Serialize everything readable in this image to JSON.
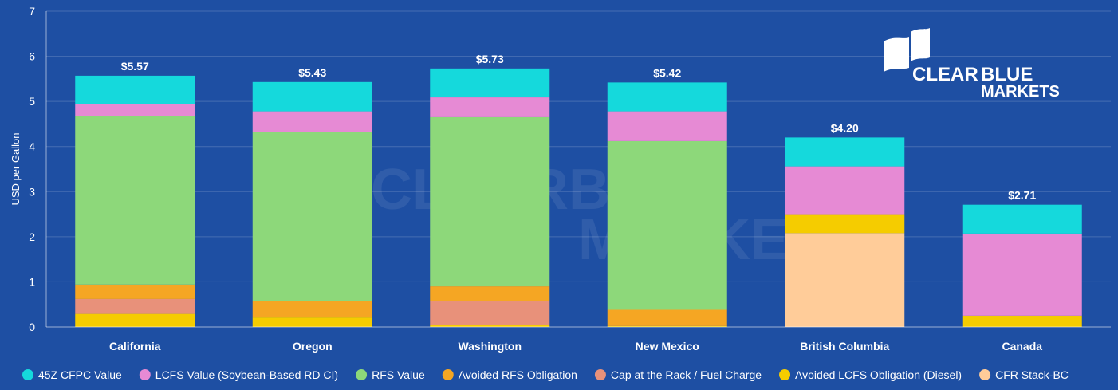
{
  "logo": {
    "line1_word1": "CLEAR",
    "line1_word2": "BLUE",
    "line2": "MARKETS"
  },
  "chart_data": {
    "type": "bar",
    "stacked": true,
    "ylabel": "USD per Gallon",
    "ylim": [
      0,
      7
    ],
    "yticks": [
      0,
      1,
      2,
      3,
      4,
      5,
      6,
      7
    ],
    "grid": true,
    "legend_position": "bottom",
    "categories": [
      "California",
      "Oregon",
      "Washington",
      "New Mexico",
      "British Columbia",
      "Canada"
    ],
    "totals": [
      "$5.57",
      "$5.43",
      "$5.73",
      "$5.42",
      "$4.20",
      "$2.71"
    ],
    "series": [
      {
        "name": "CFR Stack-BC",
        "color": "#ffcc99",
        "values": [
          0,
          0,
          0,
          0,
          2.08,
          0
        ]
      },
      {
        "name": "Avoided LCFS Obligation (Diesel)",
        "color": "#f5cc00",
        "values": [
          0.29,
          0.21,
          0.05,
          0.02,
          0.42,
          0.25
        ]
      },
      {
        "name": "Cap at the Rack / Fuel Charge",
        "color": "#e8917a",
        "values": [
          0.33,
          0,
          0.52,
          0,
          0,
          0
        ]
      },
      {
        "name": "Avoided RFS Obligation",
        "color": "#f5a623",
        "values": [
          0.32,
          0.36,
          0.33,
          0.36,
          0,
          0
        ]
      },
      {
        "name": "RFS Value",
        "color": "#8dd87a",
        "values": [
          3.74,
          3.75,
          3.75,
          3.74,
          0,
          0
        ]
      },
      {
        "name": "LCFS Value (Soybean-Based RD CI)",
        "color": "#e68ad4",
        "values": [
          0.26,
          0.46,
          0.44,
          0.66,
          1.06,
          1.82
        ]
      },
      {
        "name": "45Z CFPC Value",
        "color": "#15d9dc",
        "values": [
          0.63,
          0.65,
          0.64,
          0.64,
          0.64,
          0.64
        ]
      }
    ],
    "legend_order": [
      "45Z CFPC Value",
      "LCFS Value (Soybean-Based RD CI)",
      "RFS Value",
      "Avoided RFS Obligation",
      "Cap at the Rack / Fuel Charge",
      "Avoided LCFS Obligation (Diesel)",
      "CFR Stack-BC"
    ]
  }
}
